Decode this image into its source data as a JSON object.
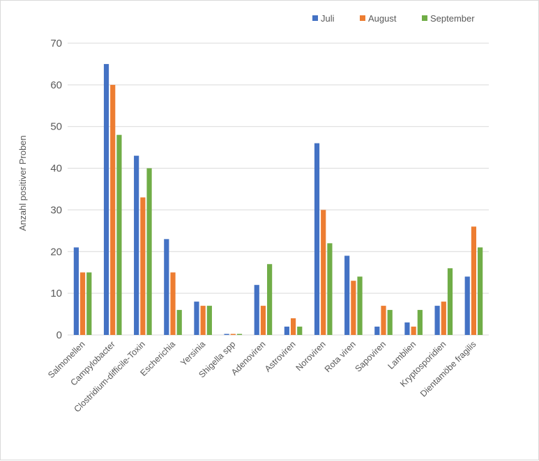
{
  "chart_data": {
    "type": "bar",
    "title": "",
    "xlabel": "",
    "ylabel": "Anzahl positiver Proben",
    "ylim": [
      0,
      70
    ],
    "yticks": [
      0,
      10,
      20,
      30,
      40,
      50,
      60,
      70
    ],
    "grid": true,
    "legend_position": "top-right",
    "categories": [
      "Salmonellen",
      "Campylobacter",
      "Clostridium-difficile-Toxin",
      "Escherichia",
      "Yersinia",
      "Shigella spp",
      "Adenoviren",
      "Astroviren",
      "Noroviren",
      "Rota viren",
      "Sapoviren",
      "Lamblien",
      "Kryptosporidien",
      "Dientamöbe fragilis"
    ],
    "series": [
      {
        "name": "Juli",
        "color": "#4472c4",
        "values": [
          21,
          65,
          43,
          23,
          8,
          0,
          12,
          2,
          46,
          19,
          2,
          3,
          7,
          14
        ]
      },
      {
        "name": "August",
        "color": "#ed7d31",
        "values": [
          15,
          60,
          33,
          15,
          7,
          0,
          7,
          4,
          30,
          13,
          7,
          2,
          8,
          26
        ]
      },
      {
        "name": "September",
        "color": "#70ad47",
        "values": [
          15,
          48,
          40,
          6,
          7,
          0,
          17,
          2,
          22,
          14,
          6,
          6,
          16,
          21
        ]
      }
    ]
  }
}
